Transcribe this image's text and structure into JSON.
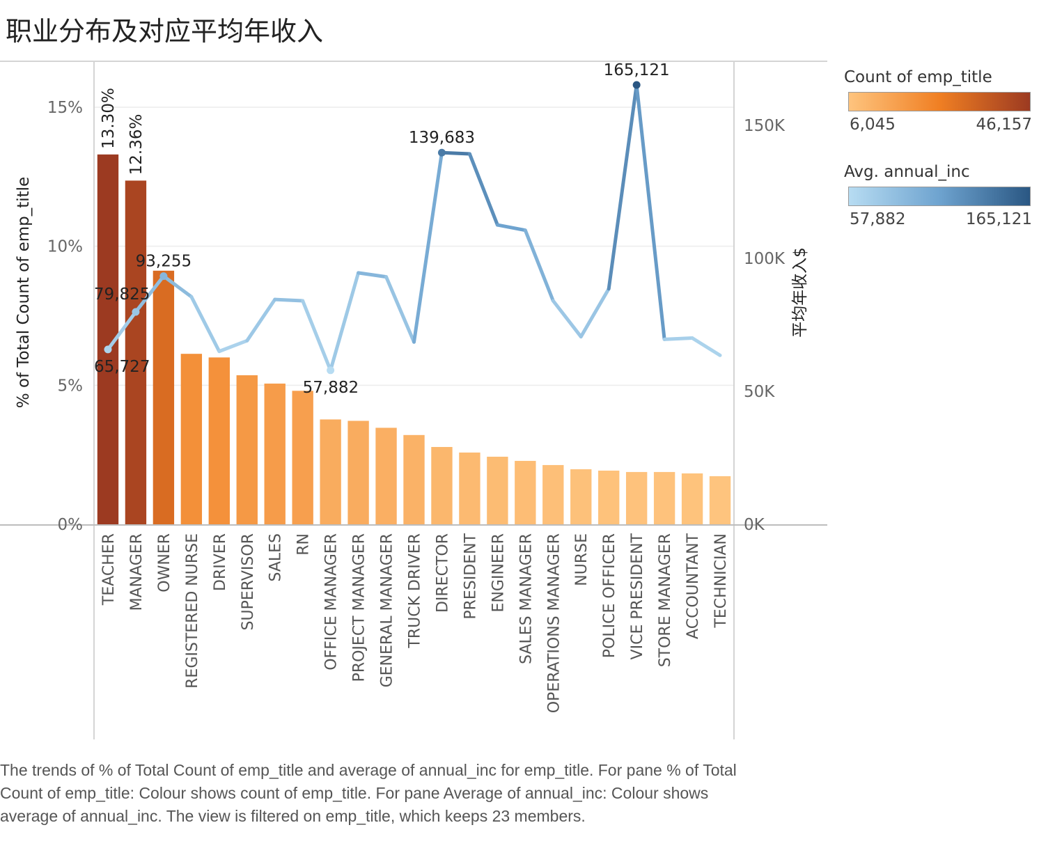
{
  "title": "职业分布及对应平均年收入",
  "caption": "The trends of % of Total Count of emp_title and average of annual_inc for emp_title.  For pane % of Total Count of emp_title:  Colour shows count of emp_title.  For pane Average of annual_inc:  Colour shows average of annual_inc. The view is filtered on emp_title, which keeps 23 members.",
  "legends": [
    {
      "title": "Count of emp_title",
      "min": "6,045",
      "max": "46,157",
      "colors": [
        "#fec47e",
        "#f07f23",
        "#9c3a21"
      ]
    },
    {
      "title": "Avg. annual_inc",
      "min": "57,882",
      "max": "165,121",
      "colors": [
        "#b7dcf2",
        "#6ea3cf",
        "#2a5783"
      ]
    }
  ],
  "chart_data": {
    "type": "bar",
    "categories": [
      "TEACHER",
      "MANAGER",
      "OWNER",
      "REGISTERED NURSE",
      "DRIVER",
      "SUPERVISOR",
      "SALES",
      "RN",
      "OFFICE MANAGER",
      "PROJECT MANAGER",
      "GENERAL MANAGER",
      "TRUCK DRIVER",
      "DIRECTOR",
      "PRESIDENT",
      "ENGINEER",
      "SALES MANAGER",
      "OPERATIONS MANAGER",
      "NURSE",
      "POLICE OFFICER",
      "VICE PRESIDENT",
      "STORE MANAGER",
      "ACCOUNTANT",
      "TECHNICIAN"
    ],
    "ylabel": "% of Total Count of emp_title",
    "y2label": "平均年收入$",
    "ylim": [
      0,
      15.8
    ],
    "y2lim": [
      0,
      165121
    ],
    "yticks": [
      0,
      5,
      10,
      15
    ],
    "ytick_labels": [
      "0%",
      "5%",
      "10%",
      "15%"
    ],
    "y2ticks": [
      0,
      50000,
      100000,
      150000
    ],
    "y2tick_labels": [
      "0K",
      "50K",
      "100K",
      "150K"
    ],
    "series": [
      {
        "kind": "bar",
        "values": [
          13.3,
          12.36,
          9.12,
          6.13,
          6.0,
          5.36,
          5.06,
          4.8,
          3.77,
          3.72,
          3.47,
          3.21,
          2.78,
          2.58,
          2.43,
          2.28,
          2.13,
          1.98,
          1.93,
          1.88,
          1.88,
          1.83,
          1.73
        ],
        "labels": [
          "13.30%",
          "12.36%",
          "",
          "",
          "",
          "",
          "",
          "",
          "",
          "",
          "",
          "",
          "",
          "",
          "",
          "",
          "",
          "",
          "",
          "",
          "",
          "",
          ""
        ]
      },
      {
        "kind": "line",
        "values": [
          65727,
          79825,
          93255,
          85500,
          65000,
          69000,
          84500,
          84000,
          57882,
          94500,
          93000,
          68500,
          139683,
          139200,
          112500,
          110500,
          84000,
          70500,
          88500,
          165121,
          69500,
          70000,
          63500
        ],
        "labels": [
          "65,727",
          "79,825",
          "93,255",
          "",
          "",
          "",
          "",
          "",
          "57,882",
          "",
          "",
          "",
          "139,683",
          "",
          "",
          "",
          "",
          "",
          "",
          "165,121",
          "",
          "",
          ""
        ]
      }
    ],
    "grid": true
  }
}
